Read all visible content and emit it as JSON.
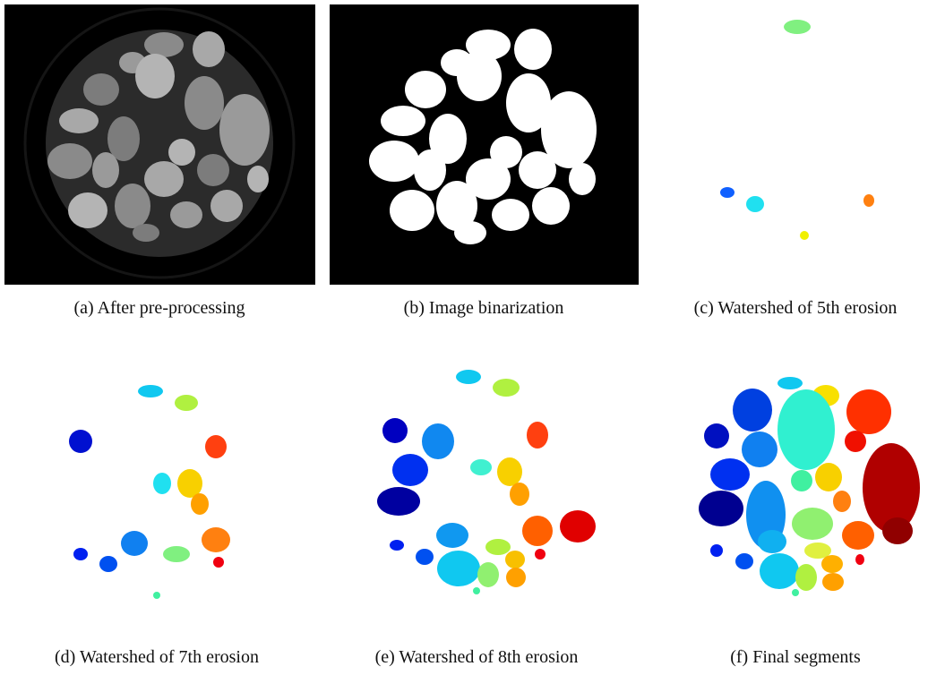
{
  "figure": {
    "panels": [
      {
        "caption": "(a) After pre-processing"
      },
      {
        "caption": "(b) Image binarization"
      },
      {
        "caption": "(c) Watershed of 5th erosion"
      },
      {
        "caption": "(d) Watershed of 7th erosion"
      },
      {
        "caption": "(e) Watershed of 8th erosion"
      },
      {
        "caption": "(f) Final segments"
      }
    ]
  }
}
